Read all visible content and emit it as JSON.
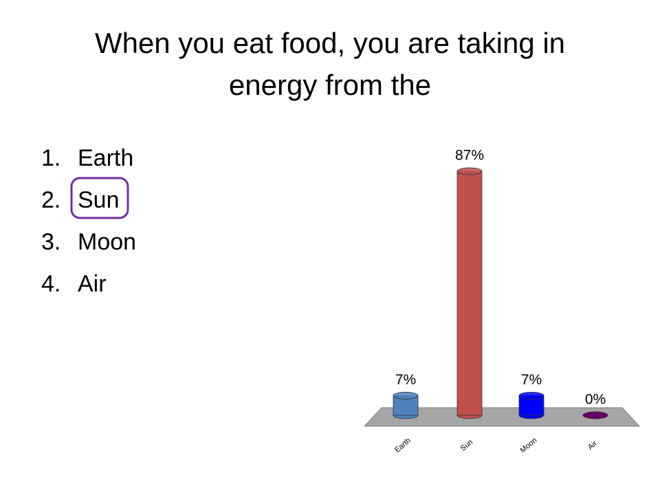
{
  "title": [
    "When you eat food, you are taking in",
    "energy from the"
  ],
  "options": [
    {
      "number": "1.",
      "text": "Earth"
    },
    {
      "number": "2.",
      "text": "Sun"
    },
    {
      "number": "3.",
      "text": "Moon"
    },
    {
      "number": "4.",
      "text": "Air"
    }
  ],
  "chart_data": {
    "type": "bar",
    "categories": [
      "Earth",
      "Sun",
      "Moon",
      "Air"
    ],
    "values": [
      7,
      87,
      7,
      0
    ],
    "value_labels": [
      "7%",
      "87%",
      "7%",
      "0%"
    ],
    "colors": [
      "#4f81bd",
      "#c0504d",
      "#0000ff",
      "#660066"
    ]
  }
}
